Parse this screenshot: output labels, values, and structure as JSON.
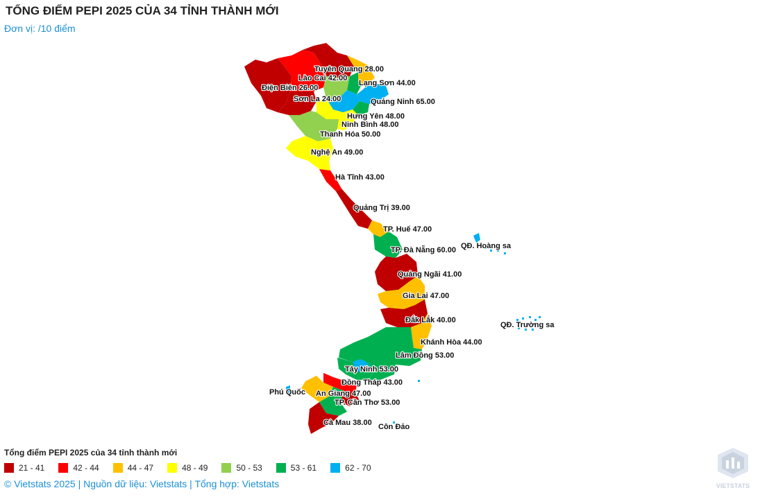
{
  "title": "TỔNG ĐIỂM PEPI 2025 CỦA 34 TỈNH THÀNH MỚI",
  "subtitle": "Đơn vị: /10 điểm",
  "legend": {
    "title": "Tổng điểm PEPI 2025 của 34 tỉnh thành mới",
    "items": [
      {
        "label": "21 - 41",
        "color": "#c00000"
      },
      {
        "label": "42 - 44",
        "color": "#ff0000"
      },
      {
        "label": "44 - 47",
        "color": "#ffc000"
      },
      {
        "label": "48 - 49",
        "color": "#ffff00"
      },
      {
        "label": "50 - 53",
        "color": "#92d050"
      },
      {
        "label": "53 - 61",
        "color": "#00b050"
      },
      {
        "label": "62 - 70",
        "color": "#00b0f0"
      }
    ]
  },
  "provinces": [
    {
      "name": "Tuyên Quang",
      "label": "Tuyên Quang 28.00"
    },
    {
      "name": "Lào Cai",
      "label": "Lào Cai 42.00"
    },
    {
      "name": "Lạng Sơn",
      "label": "Lạng Sơn 44.00"
    },
    {
      "name": "Điện Biên",
      "label": "Điện Biên 26.00"
    },
    {
      "name": "Sơn La",
      "label": "Sơn La 24.00"
    },
    {
      "name": "Quảng Ninh",
      "label": "Quảng Ninh 65.00"
    },
    {
      "name": "Hưng Yên",
      "label": "Hưng Yên 48.00"
    },
    {
      "name": "Ninh Bình",
      "label": "Ninh Bình 48.00"
    },
    {
      "name": "Thanh Hóa",
      "label": "Thanh Hóa 50.00"
    },
    {
      "name": "Nghệ An",
      "label": "Nghệ An 49.00"
    },
    {
      "name": "Hà Tĩnh",
      "label": "Hà Tĩnh 43.00"
    },
    {
      "name": "Quảng Trị",
      "label": "Quảng Trị 39.00"
    },
    {
      "name": "TP. Huế",
      "label": "TP. Huế 47.00"
    },
    {
      "name": "TP. Đà Nẵng",
      "label": "TP. Đà Nẵng 60.00"
    },
    {
      "name": "Quảng Ngãi",
      "label": "Quảng Ngãi 41.00"
    },
    {
      "name": "Gia Lai",
      "label": "Gia Lai 47.00"
    },
    {
      "name": "Đắk Lắk",
      "label": "Đắk Lắk 40.00"
    },
    {
      "name": "Khánh Hòa",
      "label": "Khánh Hòa 44.00"
    },
    {
      "name": "Lâm Đồng",
      "label": "Lâm Đồng 53.00"
    },
    {
      "name": "Tây Ninh",
      "label": "Tây Ninh 53.00"
    },
    {
      "name": "Đồng Tháp",
      "label": "Đồng Tháp 43.00"
    },
    {
      "name": "An Giang",
      "label": "An Giang 47.00"
    },
    {
      "name": "TP. Cần Thơ",
      "label": "TP. Cần Thơ 53.00"
    },
    {
      "name": "Cà Mau",
      "label": "Cà Mau 38.00"
    }
  ],
  "islands": {
    "hoang_sa": "QĐ. Hoàng sa",
    "truong_sa": "QĐ. Trường sa",
    "phu_quoc": "Phú Quốc",
    "con_dao": "Côn Đảo"
  },
  "footer": "© Vietstats 2025 | Nguồn dữ liệu: Vietstats | Tổng hợp: Vietstats",
  "logo": {
    "text": "VIETSTATS"
  },
  "colors": {
    "c1": "#c00000",
    "c2": "#ff0000",
    "c3": "#ffc000",
    "c4": "#ffff00",
    "c5": "#92d050",
    "c6": "#00b050",
    "c7": "#00b0f0"
  }
}
